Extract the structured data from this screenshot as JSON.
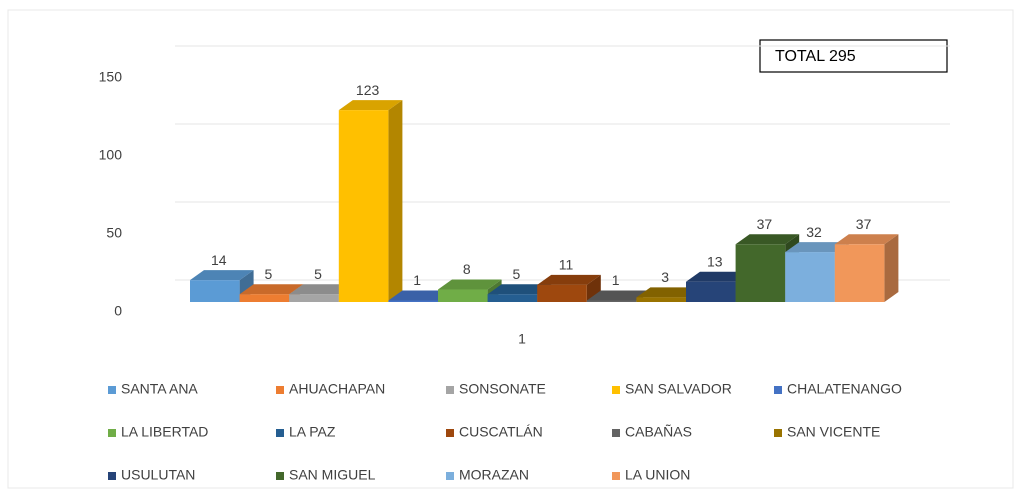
{
  "chart_data": {
    "type": "bar",
    "annotation": "TOTAL 295",
    "categories": [
      "1"
    ],
    "series": [
      {
        "name": "SANTA ANA",
        "color": "#5b9bd5",
        "values": [
          14
        ]
      },
      {
        "name": "AHUACHAPAN",
        "color": "#ed7d31",
        "values": [
          5
        ]
      },
      {
        "name": "SONSONATE",
        "color": "#a5a5a5",
        "values": [
          5
        ]
      },
      {
        "name": "SAN SALVADOR",
        "color": "#ffc000",
        "values": [
          123
        ]
      },
      {
        "name": "CHALATENANGO",
        "color": "#4472c4",
        "values": [
          1
        ]
      },
      {
        "name": "LA LIBERTAD",
        "color": "#70ad47",
        "values": [
          8
        ]
      },
      {
        "name": "LA PAZ",
        "color": "#255e91",
        "values": [
          5
        ]
      },
      {
        "name": "CUSCATLÁN",
        "color": "#9e480e",
        "values": [
          11
        ]
      },
      {
        "name": "CABAÑAS",
        "color": "#636363",
        "values": [
          1
        ]
      },
      {
        "name": "SAN VICENTE",
        "color": "#997300",
        "values": [
          3
        ]
      },
      {
        "name": "USULUTAN",
        "color": "#264478",
        "values": [
          13
        ]
      },
      {
        "name": "SAN MIGUEL",
        "color": "#43682b",
        "values": [
          37
        ]
      },
      {
        "name": "MORAZAN",
        "color": "#7cafdd",
        "values": [
          32
        ]
      },
      {
        "name": "LA UNION",
        "color": "#f1975a",
        "values": [
          37
        ]
      }
    ],
    "ylim": [
      0,
      150
    ],
    "yticks": [
      0,
      50,
      100,
      150
    ],
    "grid": true
  }
}
